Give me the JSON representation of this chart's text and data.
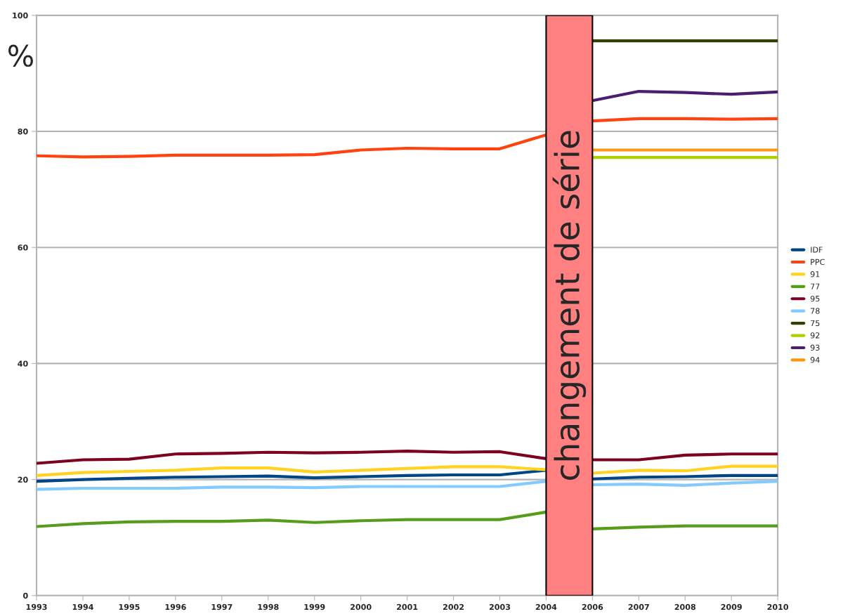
{
  "chart_data": {
    "type": "line",
    "ylabel": "%",
    "categories": [
      "1993",
      "1994",
      "1995",
      "1996",
      "1997",
      "1998",
      "1999",
      "2000",
      "2001",
      "2002",
      "2003",
      "2004",
      "2006",
      "2007",
      "2008",
      "2009",
      "2010"
    ],
    "series": [
      {
        "name": "IDF",
        "color": "#004586",
        "values": [
          19.7,
          20.0,
          20.2,
          20.4,
          20.5,
          20.6,
          20.3,
          20.5,
          20.7,
          20.8,
          20.8,
          21.6,
          20.1,
          20.4,
          20.5,
          20.7,
          20.7
        ]
      },
      {
        "name": "PPC",
        "color": "#ff420e",
        "values": [
          75.8,
          75.6,
          75.7,
          75.9,
          75.9,
          75.9,
          76.0,
          76.8,
          77.1,
          77.0,
          77.0,
          79.4,
          81.8,
          82.2,
          82.2,
          82.1,
          82.2
        ]
      },
      {
        "name": "91",
        "color": "#ffd320",
        "values": [
          20.7,
          21.2,
          21.4,
          21.6,
          22.0,
          22.0,
          21.3,
          21.6,
          21.9,
          22.2,
          22.2,
          21.7,
          21.1,
          21.6,
          21.5,
          22.3,
          22.3
        ]
      },
      {
        "name": "77",
        "color": "#579d1c",
        "values": [
          11.9,
          12.4,
          12.7,
          12.8,
          12.8,
          13.0,
          12.6,
          12.9,
          13.1,
          13.1,
          13.1,
          14.4,
          11.5,
          11.8,
          12.0,
          12.0,
          12.0
        ]
      },
      {
        "name": "95",
        "color": "#7e0021",
        "values": [
          22.8,
          23.4,
          23.5,
          24.4,
          24.5,
          24.7,
          24.6,
          24.7,
          24.9,
          24.7,
          24.8,
          23.6,
          23.4,
          23.4,
          24.2,
          24.4,
          24.4
        ]
      },
      {
        "name": "78",
        "color": "#83caff",
        "values": [
          18.3,
          18.5,
          18.5,
          18.5,
          18.7,
          18.7,
          18.6,
          18.8,
          18.8,
          18.8,
          18.8,
          19.7,
          19.1,
          19.2,
          19.0,
          19.4,
          19.7
        ]
      },
      {
        "name": "75",
        "color": "#314004",
        "values": [
          null,
          null,
          null,
          null,
          null,
          null,
          null,
          null,
          null,
          null,
          null,
          null,
          95.6,
          95.6,
          95.6,
          95.6,
          95.6
        ]
      },
      {
        "name": "92",
        "color": "#aecf00",
        "values": [
          null,
          null,
          null,
          null,
          null,
          null,
          null,
          null,
          null,
          null,
          null,
          null,
          75.5,
          75.5,
          75.5,
          75.5,
          75.5
        ]
      },
      {
        "name": "93",
        "color": "#4b1f6f",
        "values": [
          null,
          null,
          null,
          null,
          null,
          null,
          null,
          null,
          null,
          null,
          null,
          null,
          85.3,
          86.9,
          86.7,
          86.4,
          86.8
        ]
      },
      {
        "name": "94",
        "color": "#ff950e",
        "values": [
          null,
          null,
          null,
          null,
          null,
          null,
          null,
          null,
          null,
          null,
          null,
          null,
          76.8,
          76.8,
          76.8,
          76.8,
          76.8
        ]
      }
    ],
    "ylim": [
      0,
      100
    ],
    "yticks": [
      0,
      20,
      40,
      60,
      80,
      100
    ],
    "grid": "y",
    "legend": "right",
    "line_style": "solid",
    "bands": [
      {
        "axis": "x",
        "from": "2004",
        "to": "2006",
        "label": "changement de série",
        "color": "#ff8080"
      }
    ]
  }
}
